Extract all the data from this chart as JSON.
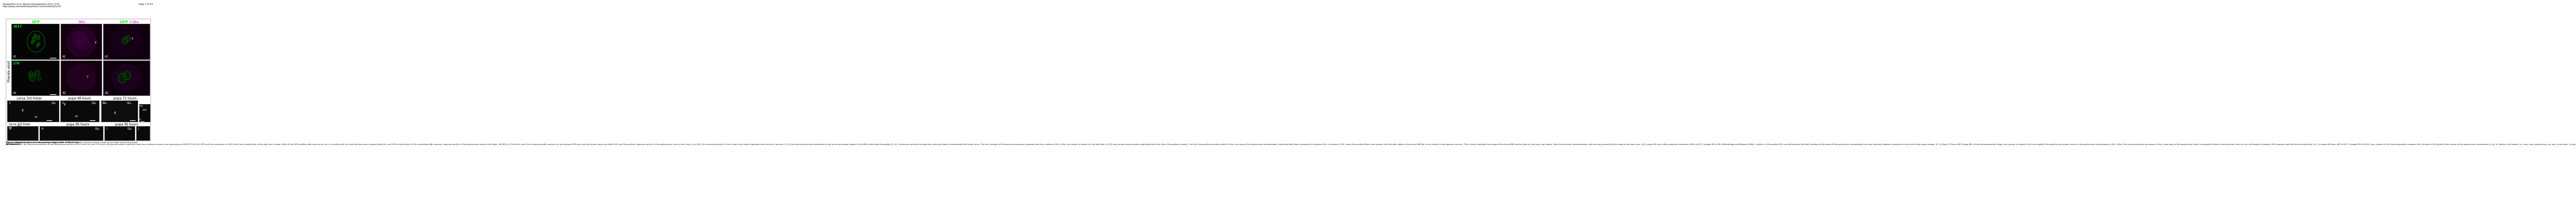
{
  "title_left": "Sinakevitch et al. Neural Development 2010, 5:10",
  "title_left2": "http://www.neuraldevelopment.com/content/5/1/10",
  "title_right": "Page 7 of 20",
  "header_gfp": "GFP",
  "header_glu": "Glu",
  "header_gfp_plus": "GFP + ",
  "header_glu2": "Glu",
  "row_label_pharate": "Pharate adult",
  "label_201Y": "201Y",
  "label_17d": "17d",
  "label_A1": "A1",
  "label_A2": "A2",
  "label_A3": "A3",
  "label_B1": "B1",
  "label_B2": "B2",
  "label_B3": "B3",
  "col_larva": "Larva 3rd Instar",
  "col_pupa48": "pupa 48 hours",
  "col_pupa72": "pupa 72 hours",
  "label_C": "C",
  "label_E": "E",
  "label_F": "F",
  "label_G": "G",
  "col_larva2": "Larva 3rd Instar",
  "col_pupa96a": "pupa 96 hours",
  "col_pupa96b": "pupa 96 hours",
  "label_D": "D",
  "label_H": "H",
  "label_I": "I",
  "label_J": "J",
  "glu": "Glu",
  "K": "K",
  "ca": "ca",
  "ped": "ped",
  "gamma": "γ",
  "caption_bold": "Figure 4 Newborn Kenyon cells express high levels of Glu in the ",
  "caption_italic": "Drosophila",
  "caption_bold2": " mushroom body in late larval stage and during pupal\ndevelopment.",
  "caption_rest": " (A, B) Transverse sections of the MB pedunculus from 201Y-GAL4 (A) and 17d-GAL4 (B) pharate adults collected a few hours before eclosion and expressing mCD8:GFP. (A1-A3) GFP and Glu expression in 201Y-GAL4 are located both in the α/βc and γ lobes. Most of the GFP-positive α/βc neurons do not co-localize with Glu and only few axons express both Glu and GFP at the border of Glu-containing α/βc neurons. Agarose section of the pedunculus close to the lobes. (B1-B3) In 17d-GAL4, most Glu-containing α/βc neurons do not express GFP and only the border axons are both GFP- and Glu-positive. Agarose section of the pedunculus close to the calyx. In (A, B), Glu immunoreactivity in the γ lobe most likely originates from extrinsic neurons. (C-G) Glu immunoreactivity monitored at late larval and pupal stages in the MB of wild-type Drosophila (C, D). Transverse sections through the calyx and lobes of wandering third instar larva. The four bundles of Glu-positive processes originate from four clusters of KCs. Only one cluster is shown (on the left side in (C,D) and arrows show bundles originating from the other Glu-positive clusters. The four Glu-positive bundles extend in the core area of the pedunculus (arrowheads), indicating that they correspond to newborn KCs. As shown in (D), these Glu-positive fibers also project into the α/βc region of the larval MB (βc is not visible on the agarose section). The contour indicates the shape of the larval MB vertical lobe (α) and spur (sp) region. Note that extrinsic glutamatergic cells are also present at this stage in the spur area. (E) In pupa 48 hours after puparium formation (APF) at 22°C (stages P5 to P6 of Bainbridge and Bownes [100]), clusters of Glu-positive KCs are still present but their bundles at the base of the pedunculus (arrowheads) are less intensely labeled compared to larval and other pupal stages. (F, G) Pupa 72 hours APF (stage P8). At this developmental stage, four groups of newborn KCs are brightly Glu-positive and project axons in the pedunculus (arrowheads in (G)). Other Glu-immunoreactive processes in the γ lobe area of the pedunculus likely correspond to fibers from extrinsic cells as only cell bodies of newborn KCs express high Glu-immunoreactivity. (H, I) In pupa 96 hours APF at 22°C (stages P11 to P12), four clusters of Glu-immunopositive newborn KCs (arrows in (H)) project their axons to the pedunculus (arrowheads in (I)). K, Kenyon cell bodies; ca, calyx; ped, pedunculus; sp, spur. Scale bars: 10 μm.",
  "bg_color": "#ffffff",
  "black": "#000000",
  "green": "#00ee00",
  "magenta": "#ff44ff",
  "white": "#ffffff",
  "dark_gray": "#111111",
  "panel_border": "#888888",
  "box_border": "#aaaaaa"
}
